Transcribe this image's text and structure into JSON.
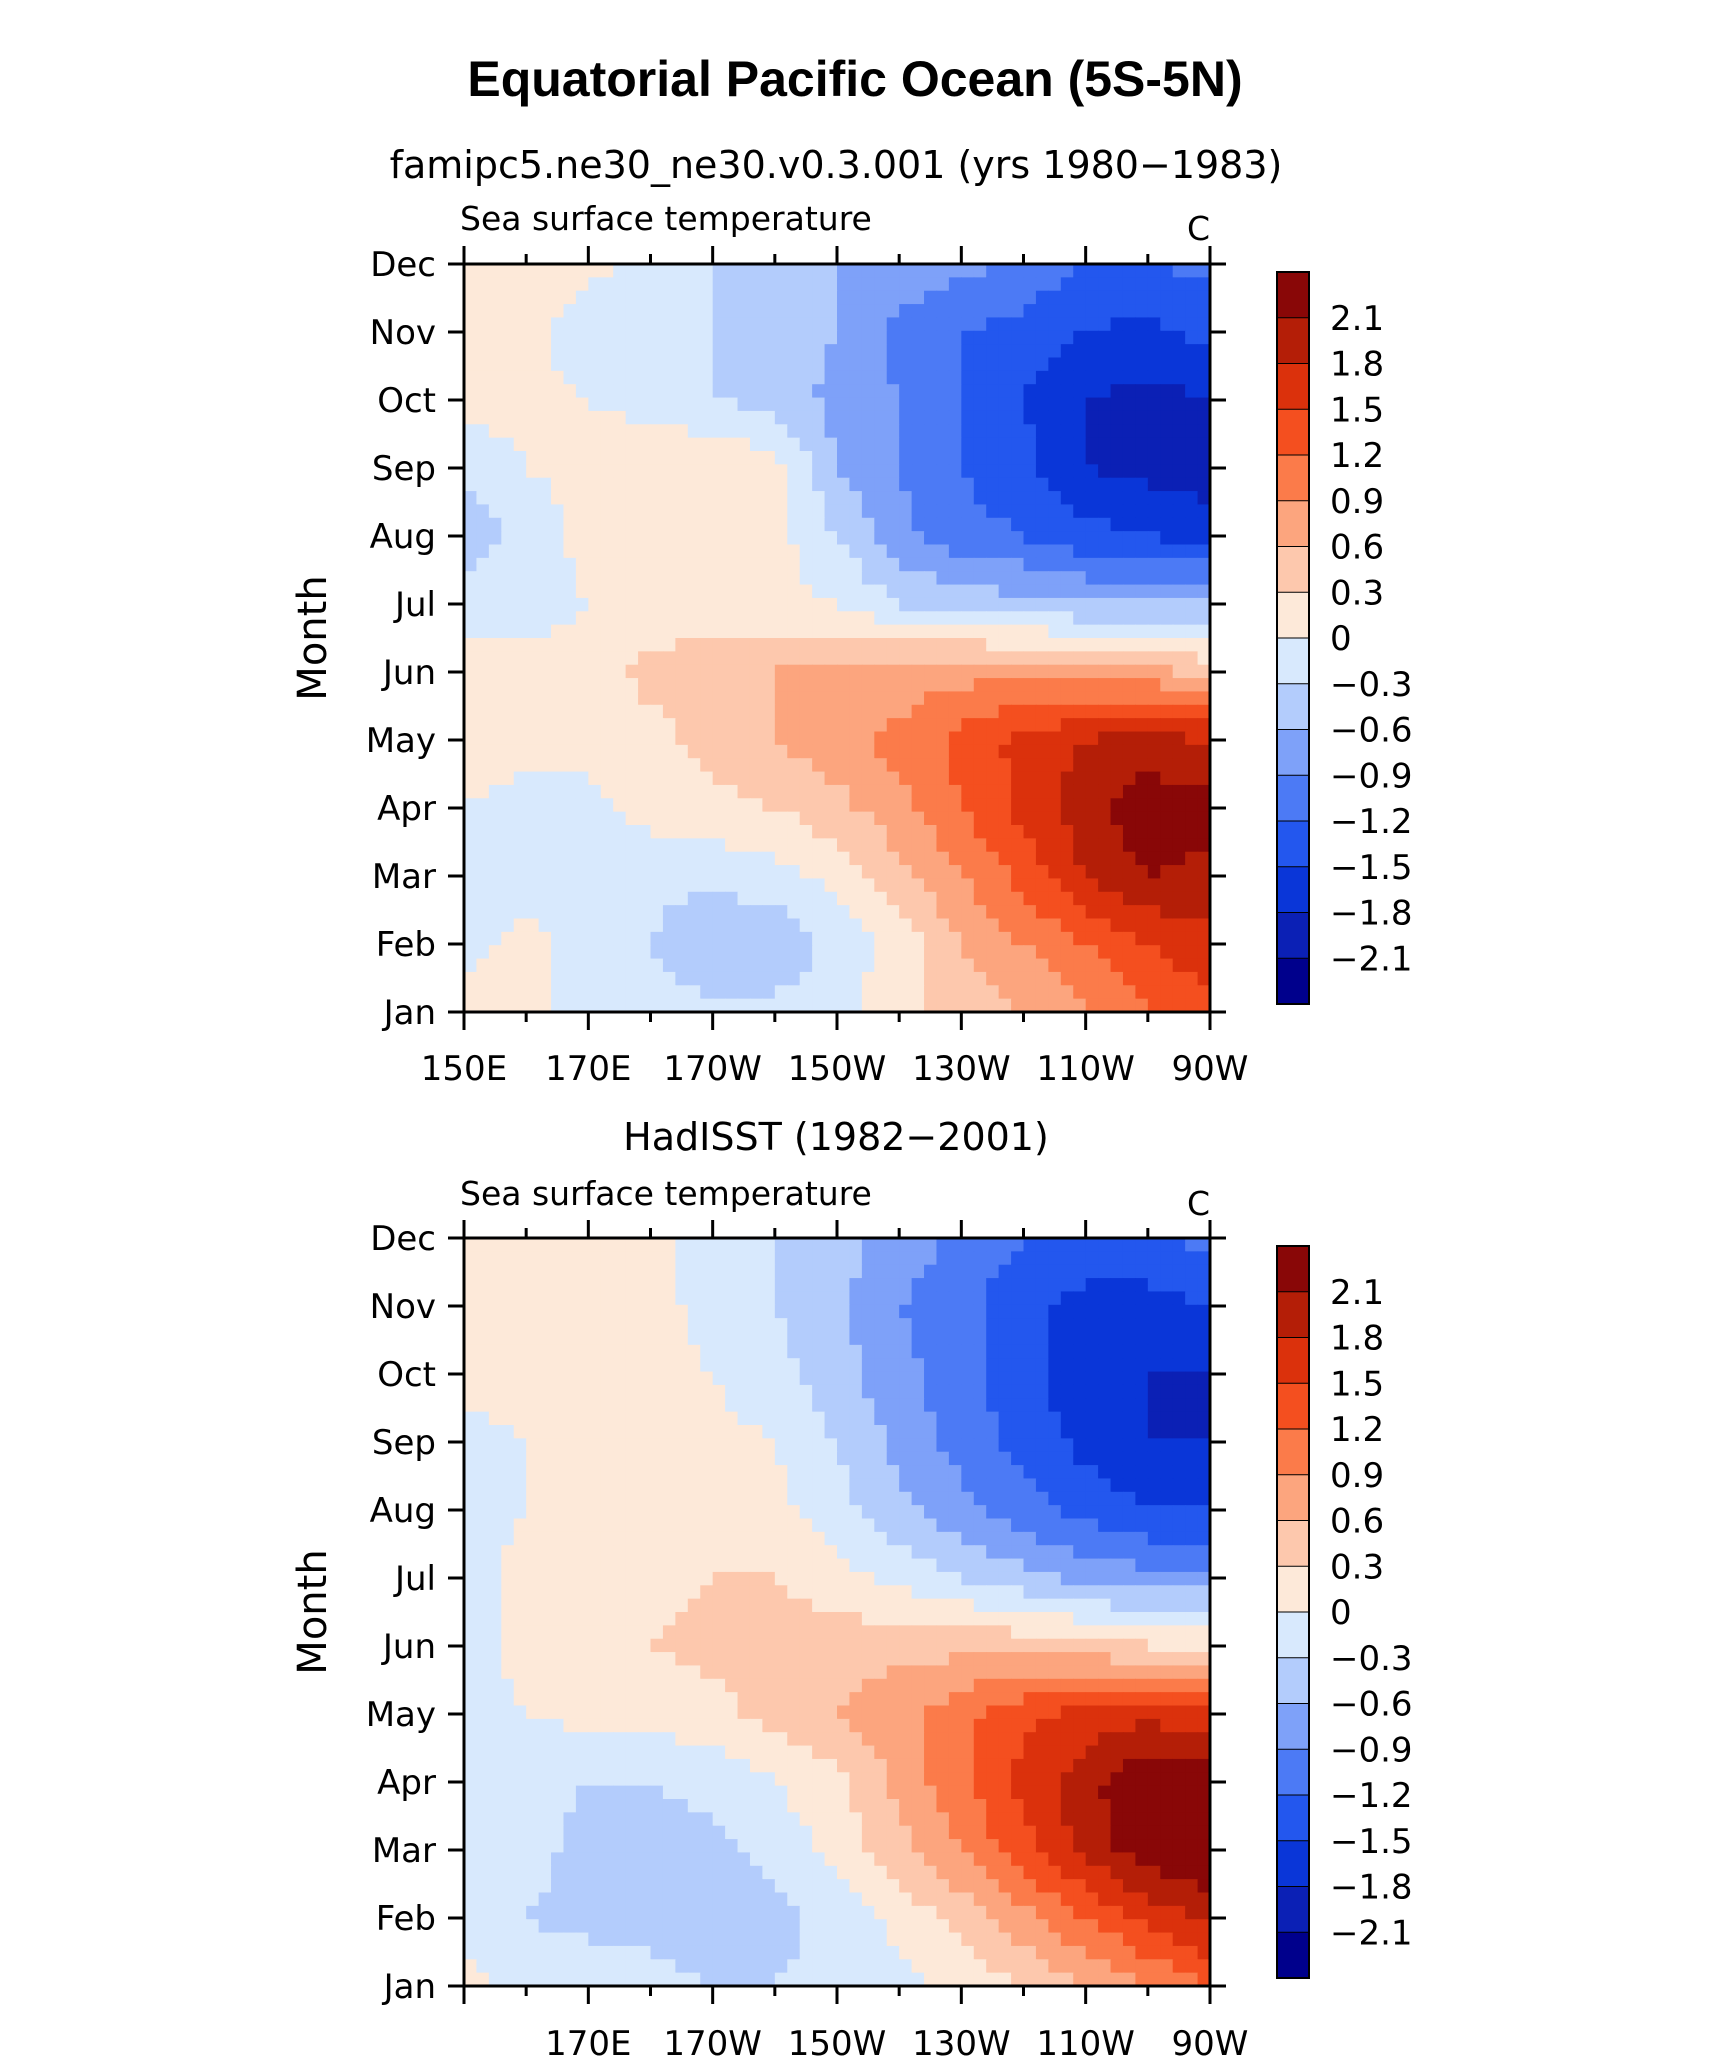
{
  "title": "Equatorial Pacific Ocean (5S-5N)",
  "chart_data": [
    {
      "type": "heatmap",
      "title": "famipc5.ne30_ne30.v0.3.001 (yrs 1980−1983)",
      "left_label": "Sea surface temperature",
      "units": "C",
      "ylabel": "Month",
      "months": [
        "Jan",
        "Feb",
        "Mar",
        "Apr",
        "May",
        "Jun",
        "Jul",
        "Aug",
        "Sep",
        "Oct",
        "Nov",
        "Dec"
      ],
      "x_ticks": [
        "150E",
        "170E",
        "170W",
        "150W",
        "130W",
        "110W",
        "90W"
      ],
      "x_tick_lon": [
        150,
        170,
        190,
        210,
        230,
        250,
        270
      ],
      "xlim": [
        150,
        270
      ],
      "ylim": [
        "Jan",
        "Dec"
      ],
      "lon": [
        150,
        160,
        170,
        180,
        190,
        200,
        210,
        220,
        230,
        240,
        250,
        260,
        270
      ],
      "values": [
        [
          0.1,
          0.1,
          -0.2,
          -0.2,
          -0.2,
          -0.2,
          -0.1,
          0.2,
          0.4,
          0.6,
          0.9,
          1.2,
          1.4
        ],
        [
          -0.1,
          0.1,
          -0.1,
          -0.3,
          -0.6,
          -0.6,
          -0.2,
          0.1,
          0.6,
          0.9,
          1.2,
          1.5,
          1.7
        ],
        [
          -0.2,
          -0.2,
          -0.2,
          -0.2,
          -0.2,
          -0.1,
          0.1,
          0.5,
          0.9,
          1.3,
          1.8,
          2.1,
          2.0
        ],
        [
          0.0,
          -0.1,
          -0.1,
          0.1,
          0.2,
          0.3,
          0.5,
          0.8,
          1.2,
          1.6,
          2.0,
          2.3,
          2.2
        ],
        [
          0.1,
          0.1,
          0.1,
          0.2,
          0.4,
          0.6,
          0.8,
          1.0,
          1.3,
          1.6,
          1.8,
          1.9,
          1.8
        ],
        [
          0.1,
          0.1,
          0.1,
          0.4,
          0.5,
          0.6,
          0.7,
          0.7,
          0.8,
          0.8,
          0.8,
          0.7,
          0.5
        ],
        [
          -0.1,
          -0.1,
          0.0,
          0.1,
          0.1,
          0.1,
          0.0,
          -0.3,
          -0.4,
          -0.5,
          -0.6,
          -0.6,
          -0.6
        ],
        [
          -0.5,
          -0.2,
          0.1,
          0.1,
          0.2,
          0.1,
          -0.3,
          -0.8,
          -1.1,
          -1.2,
          -1.4,
          -1.5,
          -1.6
        ],
        [
          -0.2,
          0.0,
          0.1,
          0.2,
          0.3,
          0.1,
          -0.6,
          -0.9,
          -1.2,
          -1.4,
          -1.8,
          -1.9,
          -2.0
        ],
        [
          0.1,
          0.1,
          0.0,
          -0.1,
          -0.3,
          -0.4,
          -0.7,
          -0.9,
          -1.2,
          -1.5,
          -1.8,
          -1.9,
          -1.8
        ],
        [
          0.2,
          0.1,
          -0.2,
          -0.2,
          -0.3,
          -0.4,
          -0.6,
          -1.0,
          -1.2,
          -1.3,
          -1.5,
          -1.6,
          -1.4
        ],
        [
          0.1,
          0.2,
          0.1,
          -0.1,
          -0.3,
          -0.5,
          -0.6,
          -0.7,
          -0.8,
          -1.0,
          -1.2,
          -1.2,
          -1.1
        ]
      ],
      "levels": [
        -2.1,
        -1.8,
        -1.5,
        -1.2,
        -0.9,
        -0.6,
        -0.3,
        0,
        0.3,
        0.6,
        0.9,
        1.2,
        1.5,
        1.8,
        2.1
      ],
      "colorbar_labels": [
        "2.1",
        "1.8",
        "1.5",
        "1.2",
        "0.9",
        "0.6",
        "0.3",
        "0",
        "−0.3",
        "−0.6",
        "−0.9",
        "−1.2",
        "−1.5",
        "−1.8",
        "−2.1"
      ]
    },
    {
      "type": "heatmap",
      "title": "HadISST (1982−2001)",
      "left_label": "Sea surface temperature",
      "units": "C",
      "ylabel": "Month",
      "months": [
        "Jan",
        "Feb",
        "Mar",
        "Apr",
        "May",
        "Jun",
        "Jul",
        "Aug",
        "Sep",
        "Oct",
        "Nov",
        "Dec"
      ],
      "x_ticks": [
        "170E",
        "170W",
        "150W",
        "130W",
        "110W",
        "90W"
      ],
      "x_tick_lon": [
        170,
        190,
        210,
        230,
        250,
        270
      ],
      "xlim": [
        150,
        270
      ],
      "ylim": [
        "Jan",
        "Dec"
      ],
      "lon": [
        150,
        160,
        170,
        180,
        190,
        200,
        210,
        220,
        230,
        240,
        250,
        260,
        270
      ],
      "values": [
        [
          0.1,
          -0.1,
          -0.1,
          -0.2,
          -0.3,
          -0.3,
          -0.2,
          -0.1,
          0.1,
          0.3,
          0.6,
          0.9,
          1.2
        ],
        [
          -0.1,
          -0.3,
          -0.4,
          -0.4,
          -0.5,
          -0.4,
          -0.2,
          0.1,
          0.4,
          0.8,
          1.2,
          1.6,
          1.9
        ],
        [
          -0.1,
          -0.2,
          -0.4,
          -0.4,
          -0.4,
          -0.2,
          0.1,
          0.5,
          0.9,
          1.4,
          1.9,
          2.3,
          2.4
        ],
        [
          -0.1,
          -0.2,
          -0.3,
          -0.3,
          -0.2,
          0.0,
          0.2,
          0.7,
          1.1,
          1.6,
          2.0,
          2.4,
          2.3
        ],
        [
          -0.1,
          0.0,
          0.1,
          0.1,
          0.2,
          0.4,
          0.6,
          0.8,
          1.1,
          1.4,
          1.6,
          1.7,
          1.6
        ],
        [
          -0.1,
          0.1,
          0.2,
          0.3,
          0.4,
          0.4,
          0.5,
          0.5,
          0.5,
          0.5,
          0.4,
          0.3,
          0.2
        ],
        [
          -0.1,
          0.1,
          0.1,
          0.2,
          0.3,
          0.3,
          0.1,
          -0.1,
          -0.3,
          -0.5,
          -0.7,
          -0.8,
          -0.8
        ],
        [
          -0.2,
          0.0,
          0.2,
          0.2,
          0.1,
          0.1,
          -0.2,
          -0.5,
          -0.8,
          -1.1,
          -1.3,
          -1.5,
          -1.5
        ],
        [
          -0.1,
          0.0,
          0.1,
          0.3,
          0.1,
          0.0,
          -0.3,
          -0.7,
          -1.0,
          -1.3,
          -1.6,
          -1.8,
          -1.8
        ],
        [
          0.1,
          0.1,
          0.1,
          0.1,
          0.0,
          -0.2,
          -0.5,
          -0.8,
          -1.1,
          -1.4,
          -1.7,
          -1.8,
          -1.8
        ],
        [
          0.1,
          0.1,
          0.1,
          0.1,
          -0.1,
          -0.3,
          -0.5,
          -0.9,
          -1.1,
          -1.4,
          -1.6,
          -1.6,
          -1.5
        ],
        [
          0.1,
          0.1,
          0.1,
          0.1,
          -0.1,
          -0.3,
          -0.5,
          -0.7,
          -1.0,
          -1.2,
          -1.3,
          -1.3,
          -1.1
        ]
      ],
      "levels": [
        -2.1,
        -1.8,
        -1.5,
        -1.2,
        -0.9,
        -0.6,
        -0.3,
        0,
        0.3,
        0.6,
        0.9,
        1.2,
        1.5,
        1.8,
        2.1
      ],
      "colorbar_labels": [
        "2.1",
        "1.8",
        "1.5",
        "1.2",
        "0.9",
        "0.6",
        "0.3",
        "0",
        "−0.3",
        "−0.6",
        "−0.9",
        "−1.2",
        "−1.5",
        "−1.8",
        "−2.1"
      ]
    }
  ],
  "palette": [
    "#00008c",
    "#0b20b5",
    "#0a36d8",
    "#2357ee",
    "#4c7af5",
    "#7ea1f9",
    "#b3ccfc",
    "#d8e9fd",
    "#fde9d9",
    "#fdc8ad",
    "#fca57e",
    "#fb7b4a",
    "#f44f1f",
    "#db310c",
    "#b41e07",
    "#890707"
  ]
}
